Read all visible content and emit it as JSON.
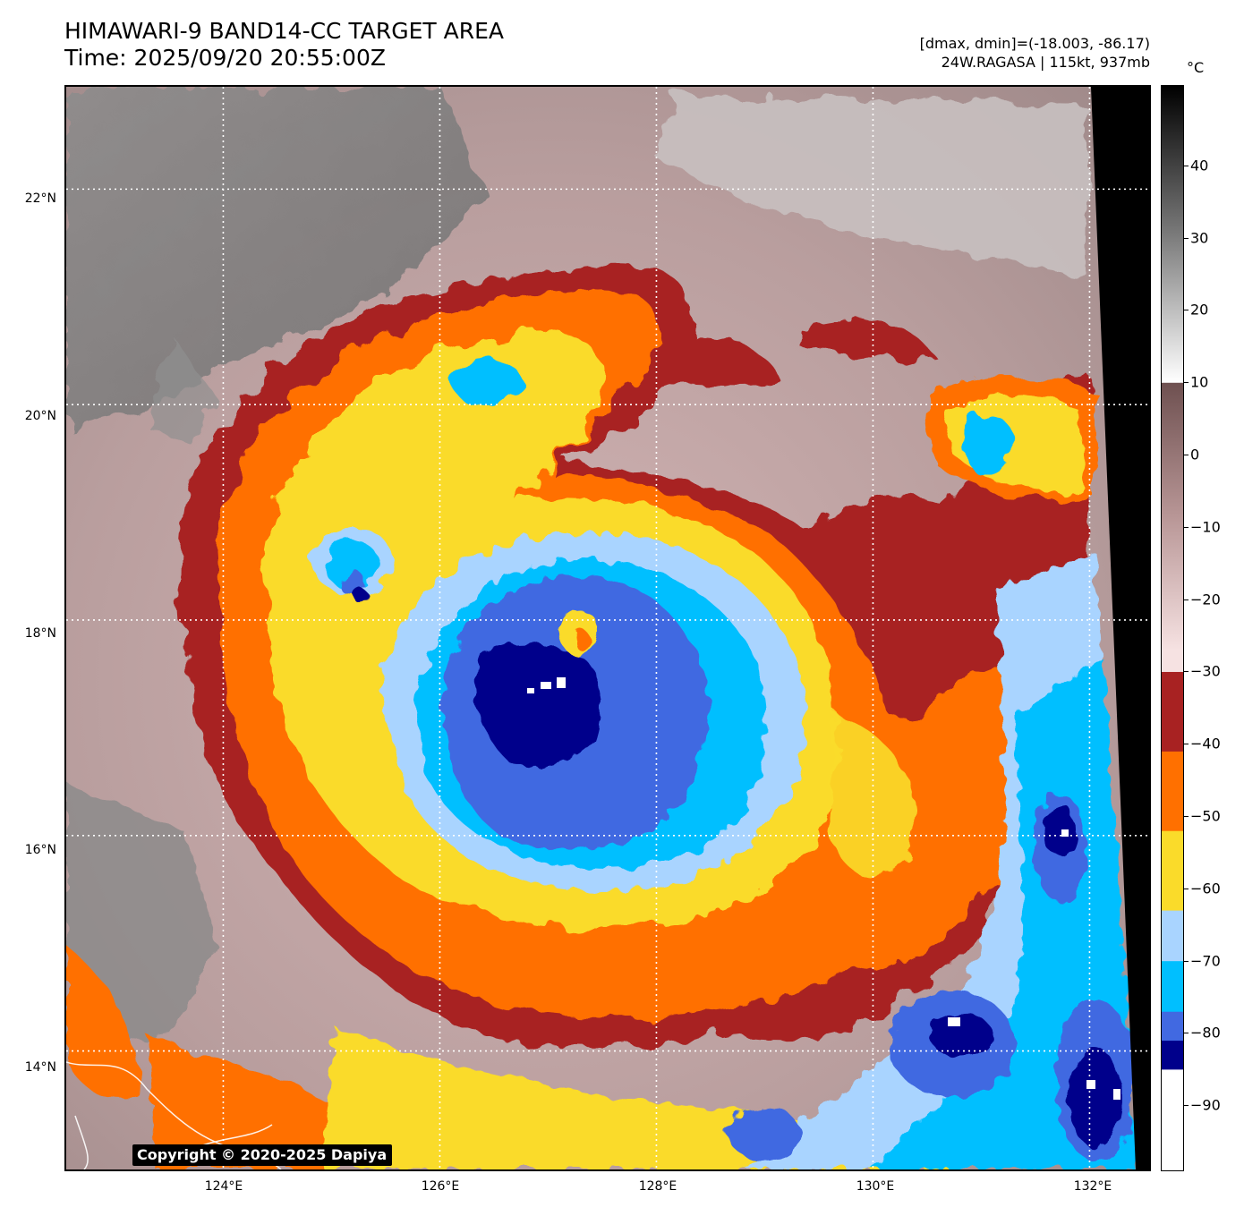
{
  "header": {
    "title_line1": "HIMAWARI-9 BAND14-CC TARGET AREA",
    "title_line2": "Time: 2025/09/20 20:55:00Z",
    "info_line1": "[dmax, dmin]=(-18.003, -86.17)",
    "info_line2": "24W.RAGASA | 115kt, 937mb"
  },
  "map": {
    "copyright": "Copyright © 2020-2025 Dapiya",
    "lat_labels": [
      "22°N",
      "20°N",
      "18°N",
      "16°N",
      "14°N"
    ],
    "lon_labels": [
      "124°E",
      "126°E",
      "128°E",
      "130°E",
      "132°E"
    ],
    "lat_values": [
      22,
      20,
      18,
      16,
      14
    ],
    "lon_values": [
      124,
      126,
      128,
      130,
      132
    ],
    "extent": {
      "lon_min": 122.55,
      "lon_max": 132.55,
      "lat_min": 12.9,
      "lat_max": 22.95
    },
    "storm_center": {
      "lat": 17.4,
      "lon": 127.05
    }
  },
  "colorbar": {
    "unit": "°C",
    "range": [
      -99,
      51
    ],
    "tick_labels": [
      "40",
      "30",
      "20",
      "10",
      "0",
      "−10",
      "−20",
      "−30",
      "−40",
      "−50",
      "−60",
      "−70",
      "−80",
      "−90"
    ],
    "tick_values": [
      40,
      30,
      20,
      10,
      0,
      -10,
      -20,
      -30,
      -40,
      -50,
      -60,
      -70,
      -80,
      -90
    ],
    "bands": [
      {
        "from": -99,
        "to": -85,
        "color": "#ffffff"
      },
      {
        "from": -85,
        "to": -81,
        "color": "#00008b"
      },
      {
        "from": -81,
        "to": -77,
        "color": "#4169e1"
      },
      {
        "from": -77,
        "to": -70,
        "color": "#00bfff"
      },
      {
        "from": -70,
        "to": -63,
        "color": "#a9d4ff"
      },
      {
        "from": -63,
        "to": -52,
        "color": "#fadb2a"
      },
      {
        "from": -52,
        "to": -41,
        "color": "#ff7000"
      },
      {
        "from": -41,
        "to": -30,
        "color": "#a82222"
      },
      {
        "from": -30,
        "to": -27,
        "color": "#f6e2e2"
      },
      {
        "from": -27,
        "to": 10,
        "color": "gradient-pink-to-brown"
      },
      {
        "from": 10,
        "to": 51,
        "color": "gradient-white-to-black"
      }
    ]
  },
  "colors": {
    "eye_core": "#00008b",
    "eyewall_inner": "#4169e1",
    "deep_convection": "#00bfff",
    "light_blue": "#a9d4ff",
    "yellow": "#fadb2a",
    "orange": "#ff7000",
    "dark_red": "#a82222",
    "cirrus_pink": "#e6cccc",
    "cold_gray": "#808080"
  }
}
